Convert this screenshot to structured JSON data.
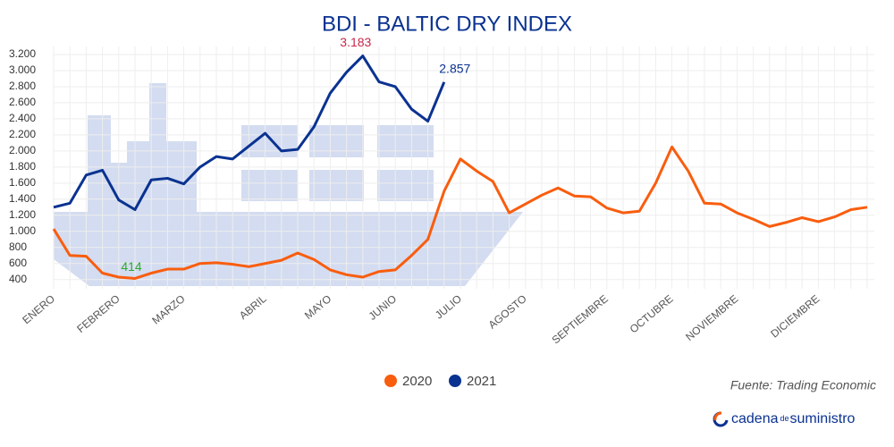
{
  "chart_data": {
    "type": "line",
    "title": "BDI - BALTIC DRY INDEX",
    "categories": [
      "ENERO",
      null,
      null,
      null,
      "FEBRERO",
      null,
      null,
      null,
      "MARZO",
      null,
      null,
      null,
      null,
      "ABRIL",
      null,
      null,
      null,
      "MAYO",
      null,
      null,
      null,
      "JUNIO",
      null,
      null,
      null,
      "JULIO",
      null,
      null,
      null,
      "AGOSTO",
      null,
      null,
      null,
      null,
      "SEPTIEMBRE",
      null,
      null,
      null,
      "OCTUBRE",
      null,
      null,
      null,
      "NOVIEMBRE",
      null,
      null,
      null,
      null,
      "DICIEMBRE",
      null,
      null,
      null
    ],
    "series": [
      {
        "name": "2020",
        "color": "#f95d0e",
        "label_color": "#2ea82e",
        "values": [
          1030,
          700,
          690,
          480,
          430,
          414,
          480,
          530,
          530,
          600,
          610,
          590,
          560,
          600,
          640,
          730,
          650,
          520,
          460,
          430,
          500,
          520,
          700,
          900,
          1500,
          1900,
          1750,
          1620,
          1230,
          1340,
          1450,
          1540,
          1440,
          1430,
          1290,
          1230,
          1250,
          1600,
          2050,
          1750,
          1350,
          1340,
          1230,
          1150,
          1060,
          1110,
          1170,
          1120,
          1180,
          1270,
          1300
        ],
        "labeled": [
          5
        ]
      },
      {
        "name": "2021",
        "color": "#0a3291",
        "label_color": "#0a3291",
        "values": [
          1300,
          1350,
          1700,
          1760,
          1390,
          1270,
          1640,
          1660,
          1590,
          1800,
          1930,
          1900,
          2060,
          2220,
          2000,
          2020,
          2300,
          2720,
          2980,
          3183,
          2860,
          2800,
          2520,
          2370,
          2857,
          null,
          null,
          null,
          null,
          null,
          null,
          null,
          null,
          null,
          null,
          null,
          null,
          null,
          null,
          null,
          null,
          null,
          null,
          null,
          null,
          null,
          null,
          null,
          null,
          null,
          null
        ],
        "value_labels": {
          "19": "3.183",
          "24": "2.857"
        },
        "peak_label_color": "#c8264a",
        "labeled": [
          19,
          24
        ]
      }
    ],
    "ylim": [
      330,
      3300
    ],
    "yticks": [
      400,
      600,
      800,
      {
        "value": 1000,
        "label": "1.000"
      },
      {
        "value": 1200,
        "label": "1.200"
      },
      {
        "value": 1400,
        "label": "1.400"
      },
      {
        "value": 1600,
        "label": "1.600"
      },
      {
        "value": 1800,
        "label": "1.800"
      },
      {
        "value": 2000,
        "label": "2.000"
      },
      {
        "value": 2200,
        "label": "2.200"
      },
      {
        "value": 2400,
        "label": "2.400"
      },
      {
        "value": 2600,
        "label": "2.600"
      },
      {
        "value": 2800,
        "label": "2.800"
      },
      {
        "value": 3000,
        "label": "3.000"
      },
      {
        "value": 3200,
        "label": "3.200"
      }
    ],
    "grid": true,
    "legend": "bottom",
    "source": "Fuente: Trading Economic",
    "brand": {
      "first": "cadena",
      "small": "de",
      "last": "suministro"
    }
  }
}
